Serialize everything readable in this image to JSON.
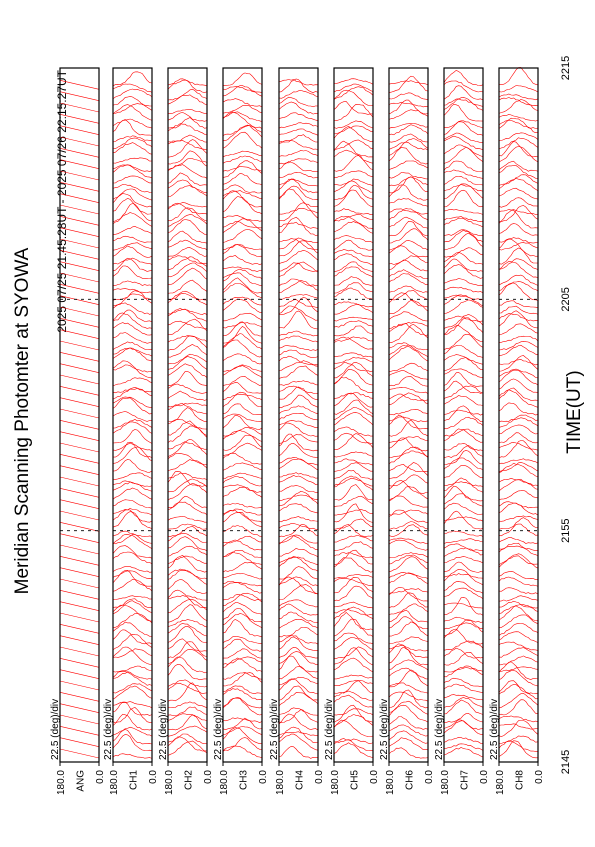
{
  "chart_data": {
    "type": "stackplot",
    "title": "Meridian Scanning Photomter at SYOWA",
    "subtitle": "2025 07/25 21:45:28UT - 2025 07/26 22:15:27UT",
    "x_label": "TIME(UT)",
    "xlim": [
      0,
      30
    ],
    "xticks": [
      {
        "value": 0,
        "label": "2145"
      },
      {
        "value": 10,
        "label": "2155"
      },
      {
        "value": 20,
        "label": "2205"
      },
      {
        "value": 30,
        "label": "2215"
      }
    ],
    "color": "#ff0000",
    "panels": [
      {
        "name": "ANG",
        "scale_label": "22.5 (deg)/div",
        "ylim": [
          0.0,
          180.0
        ],
        "yticks": [
          {
            "value": 0,
            "label": "0.0"
          },
          {
            "value": 180,
            "label": "180.0"
          }
        ]
      },
      {
        "name": "CH1",
        "scale_label": "22.5 (deg)/div",
        "ylim": [
          0.0,
          180.0
        ],
        "yticks": [
          {
            "value": 0,
            "label": "0.0"
          },
          {
            "value": 180,
            "label": "180.0"
          }
        ]
      },
      {
        "name": "CH2",
        "scale_label": "22.5 (deg)/div",
        "ylim": [
          0.0,
          180.0
        ],
        "yticks": [
          {
            "value": 0,
            "label": "0.0"
          },
          {
            "value": 180,
            "label": "180.0"
          }
        ]
      },
      {
        "name": "CH3",
        "scale_label": "22.5 (deg)/div",
        "ylim": [
          0.0,
          180.0
        ],
        "yticks": [
          {
            "value": 0,
            "label": "0.0"
          },
          {
            "value": 180,
            "label": "180.0"
          }
        ]
      },
      {
        "name": "CH4",
        "scale_label": "22.5 (deg)/div",
        "ylim": [
          0.0,
          180.0
        ],
        "yticks": [
          {
            "value": 0,
            "label": "0.0"
          },
          {
            "value": 180,
            "label": "180.0"
          }
        ]
      },
      {
        "name": "CH5",
        "scale_label": "22.5 (deg)/div",
        "ylim": [
          0.0,
          180.0
        ],
        "yticks": [
          {
            "value": 0,
            "label": "0.0"
          },
          {
            "value": 180,
            "label": "180.0"
          }
        ]
      },
      {
        "name": "CH6",
        "scale_label": "22.5 (deg)/div",
        "ylim": [
          0.0,
          180.0
        ],
        "yticks": [
          {
            "value": 0,
            "label": "0.0"
          },
          {
            "value": 180,
            "label": "180.0"
          }
        ]
      },
      {
        "name": "CH7",
        "scale_label": "22.5 (deg)/div",
        "ylim": [
          0.0,
          180.0
        ],
        "yticks": [
          {
            "value": 0,
            "label": "0.0"
          },
          {
            "value": 180,
            "label": "180.0"
          }
        ]
      },
      {
        "name": "CH8",
        "scale_label": "22.5 (deg)/div",
        "ylim": [
          0.0,
          180.0
        ],
        "yticks": [
          {
            "value": 0,
            "label": "0.0"
          },
          {
            "value": 180,
            "label": "180.0"
          }
        ]
      }
    ]
  }
}
